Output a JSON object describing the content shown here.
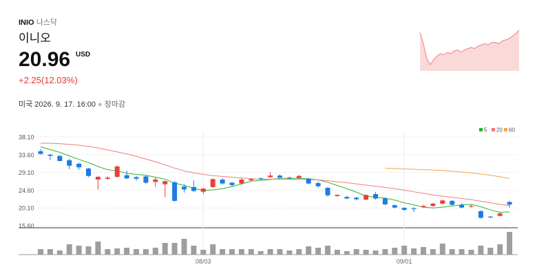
{
  "header": {
    "ticker": "INIO",
    "exchange": "나스닥",
    "name": "이니오",
    "price": "20.96",
    "currency": "USD",
    "change": "+2.25(12.03%)",
    "timestamp": "미국 2026. 9. 17. 16:00",
    "status": "장마감"
  },
  "sparkline": {
    "type": "area",
    "color": "#f08080",
    "values": [
      21.5,
      20.6,
      19.4,
      18.9,
      19.3,
      19.6,
      19.8,
      19.7,
      19.9,
      19.8,
      20.0,
      20.1,
      19.9,
      20.1,
      20.2,
      20.3,
      20.2,
      20.4,
      20.5,
      20.6,
      20.5,
      20.7,
      20.7,
      20.6,
      20.8,
      20.9,
      21.0,
      21.2,
      21.4,
      21.7
    ],
    "ylim": [
      18.4,
      21.9
    ]
  },
  "chart_data": {
    "type": "candlestick",
    "categories": [
      null,
      null,
      null,
      null,
      null,
      null,
      null,
      null,
      null,
      null,
      null,
      null,
      null,
      null,
      null,
      null,
      null,
      "08/03",
      null,
      null,
      null,
      null,
      null,
      null,
      null,
      null,
      null,
      null,
      null,
      null,
      null,
      null,
      null,
      null,
      null,
      null,
      null,
      null,
      "09/01",
      null,
      null,
      null,
      null,
      null,
      null,
      null,
      null,
      null,
      null,
      null
    ],
    "open": [
      34.5,
      33.6,
      33.3,
      32.2,
      31.3,
      30.1,
      27.3,
      27.5,
      28.0,
      28.4,
      27.9,
      28.1,
      26.7,
      26.1,
      26.6,
      25.5,
      25.4,
      24.2,
      25.4,
      27.3,
      26.5,
      26.3,
      27.1,
      27.6,
      27.9,
      28.3,
      27.8,
      27.7,
      27.5,
      26.4,
      25.2,
      23.1,
      22.9,
      22.7,
      22.2,
      23.6,
      22.5,
      20.8,
      20.1,
      20.0,
      20.3,
      20.6,
      21.2,
      21.9,
      20.9,
      20.4,
      19.3,
      17.9,
      18.1,
      21.6
    ],
    "high": [
      35.0,
      33.8,
      33.5,
      32.6,
      31.6,
      30.3,
      28.1,
      28.2,
      30.9,
      29.6,
      28.2,
      28.4,
      27.9,
      27.0,
      26.9,
      26.1,
      27.1,
      25.2,
      27.6,
      27.6,
      26.7,
      27.6,
      27.6,
      27.8,
      29.2,
      28.6,
      28.0,
      28.5,
      27.7,
      26.8,
      25.4,
      23.5,
      23.1,
      22.9,
      23.5,
      24.2,
      22.7,
      21.0,
      20.3,
      20.3,
      20.9,
      21.4,
      22.2,
      22.1,
      21.3,
      20.9,
      19.5,
      18.1,
      18.9,
      21.9
    ],
    "low": [
      33.6,
      32.2,
      31.9,
      29.9,
      29.8,
      27.9,
      24.8,
      27.2,
      27.8,
      27.4,
      27.0,
      26.2,
      25.4,
      22.8,
      21.7,
      24.0,
      24.2,
      23.6,
      25.2,
      26.0,
      25.5,
      26.0,
      26.9,
      27.2,
      27.8,
      27.6,
      27.3,
      27.5,
      26.1,
      25.3,
      23.0,
      22.9,
      22.3,
      22.0,
      22.1,
      22.2,
      20.8,
      20.0,
      19.4,
      19.1,
      20.1,
      20.4,
      21.0,
      20.7,
      20.0,
      20.2,
      17.4,
      17.5,
      17.9,
      20.2
    ],
    "close": [
      33.8,
      33.3,
      32.0,
      30.8,
      30.4,
      28.2,
      28.0,
      27.8,
      30.6,
      27.6,
      27.5,
      26.5,
      27.3,
      26.9,
      21.9,
      24.8,
      24.4,
      25.0,
      27.4,
      26.3,
      25.9,
      27.3,
      27.4,
      27.4,
      28.3,
      27.8,
      27.6,
      28.2,
      26.3,
      25.6,
      23.3,
      23.4,
      22.5,
      22.3,
      23.4,
      22.5,
      21.0,
      20.2,
      19.6,
      19.8,
      20.6,
      21.2,
      22.0,
      20.9,
      20.2,
      20.6,
      17.6,
      17.7,
      18.71,
      20.96
    ],
    "up_color": "#ea3f3b",
    "down_color": "#1c7ce3",
    "moving_averages": [
      {
        "name": "5",
        "color": "#2bb52b",
        "values": [
          35.6,
          34.9,
          34.2,
          33.3,
          32.4,
          31.6,
          30.6,
          29.8,
          29.5,
          28.9,
          28.6,
          28.4,
          27.9,
          27.4,
          26.4,
          25.8,
          25.1,
          24.5,
          24.7,
          25.0,
          25.5,
          26.2,
          26.9,
          27.1,
          27.3,
          27.6,
          27.6,
          27.6,
          27.5,
          27.2,
          26.6,
          25.8,
          25.0,
          24.1,
          23.1,
          22.8,
          22.6,
          22.1,
          21.4,
          20.9,
          20.3,
          20.1,
          20.3,
          20.6,
          20.9,
          21.0,
          20.4,
          19.6,
          19.0,
          19.1
        ]
      },
      {
        "name": "20",
        "color": "#f07a7a",
        "values": [
          36.5,
          36.5,
          36.4,
          36.2,
          36.0,
          35.7,
          35.3,
          34.8,
          34.3,
          33.8,
          33.2,
          32.5,
          31.8,
          31.0,
          30.2,
          29.5,
          29.0,
          28.6,
          28.3,
          28.1,
          27.9,
          27.7,
          27.5,
          27.4,
          27.4,
          27.4,
          27.4,
          27.3,
          27.3,
          27.2,
          27.0,
          26.7,
          26.5,
          26.2,
          25.9,
          25.6,
          25.3,
          25.0,
          24.6,
          24.2,
          23.8,
          23.4,
          23.1,
          22.8,
          22.5,
          22.2,
          21.8,
          21.4,
          21.0,
          20.7
        ]
      },
      {
        "name": "60",
        "color": "#f5a54a",
        "values": [
          null,
          null,
          null,
          null,
          null,
          null,
          null,
          null,
          null,
          null,
          null,
          null,
          null,
          null,
          null,
          null,
          null,
          null,
          null,
          null,
          null,
          null,
          null,
          null,
          null,
          null,
          null,
          null,
          null,
          null,
          null,
          null,
          null,
          null,
          null,
          null,
          30.2,
          30.1,
          30.0,
          29.9,
          29.8,
          29.7,
          29.6,
          29.4,
          29.2,
          29.0,
          28.7,
          28.4,
          28.0,
          27.6
        ]
      }
    ],
    "ylim": [
      15.6,
      38.1
    ],
    "yticks": [
      {
        "value": 38.1,
        "label": "38.10"
      },
      {
        "value": 33.6,
        "label": "33.60"
      },
      {
        "value": 29.1,
        "label": "29.10"
      },
      {
        "value": 24.6,
        "label": "24.60"
      },
      {
        "value": 20.1,
        "label": "20.10"
      },
      {
        "value": 15.6,
        "label": "15.60"
      }
    ],
    "grid": true,
    "legend": "top-right",
    "volume": {
      "color": "#9e9e9e",
      "values": [
        8,
        8,
        6,
        15,
        13,
        12,
        19,
        8,
        9,
        10,
        8,
        8,
        10,
        17,
        17,
        23,
        13,
        7,
        15,
        8,
        8,
        8,
        8,
        5,
        8,
        8,
        6,
        8,
        12,
        10,
        13,
        7,
        5,
        8,
        7,
        6,
        8,
        10,
        13,
        9,
        11,
        8,
        16,
        8,
        8,
        7,
        13,
        10,
        15,
        33
      ],
      "ylim": [
        0,
        35
      ]
    }
  }
}
